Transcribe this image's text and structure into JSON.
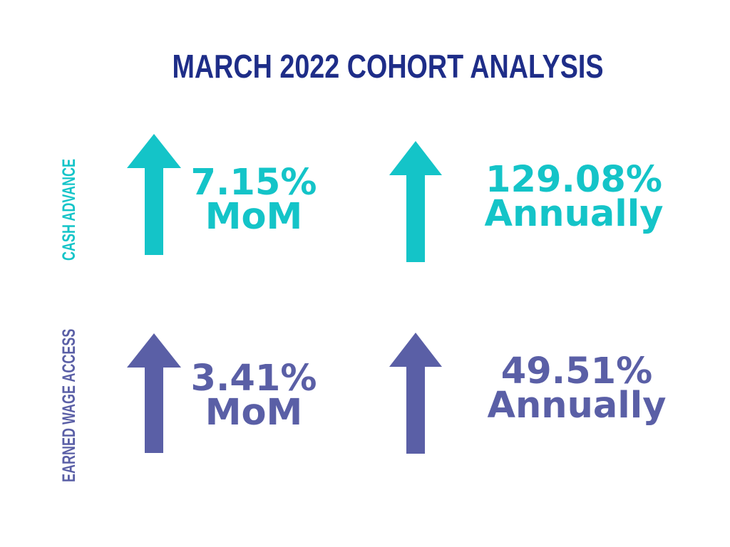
{
  "title": "MARCH 2022 COHORT ANALYSIS",
  "colors": {
    "title": "#1e2d88",
    "cash_advance": "#14c4c8",
    "earned_wage_access": "#5a5fa6"
  },
  "rows": [
    {
      "label": "CASH ADVANCE",
      "metrics": [
        {
          "icon": "arrow-up-icon",
          "value": "7.15%",
          "period": "MoM"
        },
        {
          "icon": "arrow-up-icon",
          "value": "129.08%",
          "period": "Annually"
        }
      ]
    },
    {
      "label": "EARNED WAGE ACCESS",
      "metrics": [
        {
          "icon": "arrow-up-icon",
          "value": "3.41%",
          "period": "MoM"
        },
        {
          "icon": "arrow-up-icon",
          "value": "49.51%",
          "period": "Annually"
        }
      ]
    }
  ]
}
